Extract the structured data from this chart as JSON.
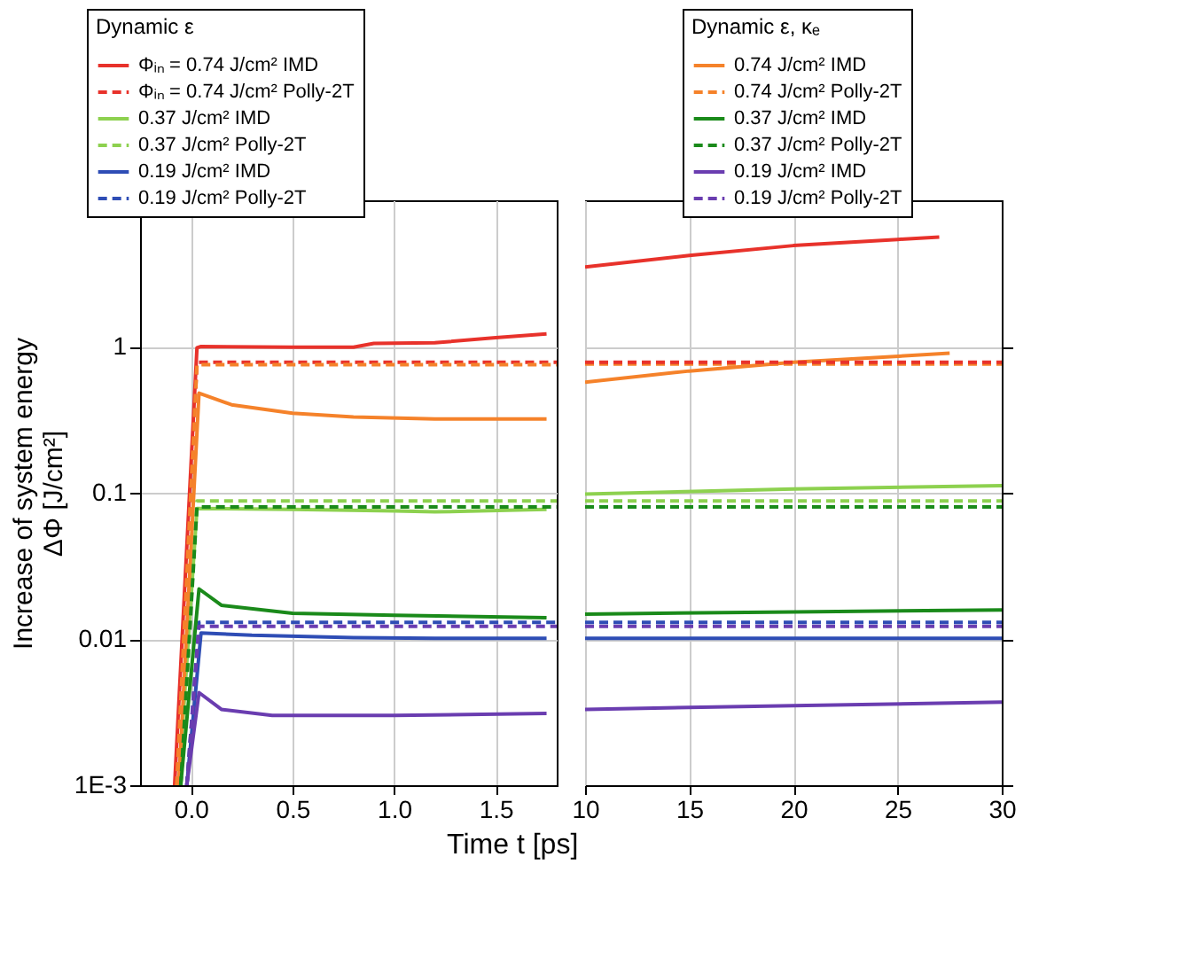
{
  "chart_data": [
    {
      "type": "line",
      "xlabel": "Time t [ps]",
      "ylabel": "Increase of system energy\nΔΦ [J/cm²]",
      "legend_title": "Dynamic ε",
      "legend": "top left",
      "grid": true,
      "log": "y",
      "xlim": [
        -0.25,
        1.8
      ],
      "xticks": [
        {
          "value": 0,
          "label": "0.0"
        },
        0.5,
        {
          "value": 1,
          "label": "1.0"
        },
        1.5
      ],
      "ylim": [
        0.001,
        10
      ],
      "yticks": [
        {
          "value": 0.001,
          "label": "1E-3"
        },
        0.01,
        0.1,
        1
      ],
      "series": [
        {
          "name": "Φᵢₙ = 0.74 J/cm² IMD",
          "color": "#e8322b",
          "line_style": "solid",
          "x": [
            -0.08,
            0.03,
            0.05,
            0.5,
            0.8,
            0.9,
            1.2,
            1.5,
            1.75
          ],
          "values": [
            0.001,
            0.98,
            1.0,
            0.99,
            0.99,
            1.05,
            1.06,
            1.15,
            1.22
          ]
        },
        {
          "name": "Φᵢₙ = 0.74 J/cm² Polly-2T",
          "color": "#e8322b",
          "line_style": "dashed",
          "x": [
            -0.07,
            0.03,
            0.5,
            1.0,
            1.5,
            1.8
          ],
          "values": [
            0.001,
            0.78,
            0.78,
            0.78,
            0.78,
            0.78
          ]
        },
        {
          "name": "0.37 J/cm² IMD",
          "color": "#8dd14f",
          "line_style": "solid",
          "x": [
            -0.06,
            0.03,
            0.5,
            1.0,
            1.2,
            1.75
          ],
          "values": [
            0.001,
            0.078,
            0.077,
            0.075,
            0.074,
            0.077
          ]
        },
        {
          "name": "0.37 J/cm² Polly-2T",
          "color": "#8dd14f",
          "line_style": "dashed",
          "x": [
            -0.05,
            0.03,
            0.5,
            1.0,
            1.5,
            1.8
          ],
          "values": [
            0.001,
            0.088,
            0.088,
            0.088,
            0.088,
            0.088
          ]
        },
        {
          "name": "0.19 J/cm² IMD",
          "color": "#2e4db5",
          "line_style": "solid",
          "x": [
            -0.02,
            0.05,
            0.3,
            0.8,
            1.2,
            1.75
          ],
          "values": [
            0.001,
            0.011,
            0.0106,
            0.0102,
            0.0101,
            0.0101
          ]
        },
        {
          "name": "0.19 J/cm² Polly-2T",
          "color": "#2e4db5",
          "line_style": "dashed",
          "x": [
            -0.02,
            0.04,
            0.5,
            1.0,
            1.5,
            1.8
          ],
          "values": [
            0.001,
            0.013,
            0.013,
            0.013,
            0.013,
            0.013
          ]
        },
        {
          "color": "#f5822a",
          "line_style": "solid",
          "x": [
            -0.06,
            0.04,
            0.2,
            0.5,
            0.8,
            1.2,
            1.75
          ],
          "values": [
            0.001,
            0.48,
            0.4,
            0.35,
            0.33,
            0.32,
            0.32
          ]
        },
        {
          "color": "#f5822a",
          "line_style": "dashed",
          "x": [
            -0.07,
            0.03,
            0.5,
            1.0,
            1.5,
            1.8
          ],
          "values": [
            0.001,
            0.75,
            0.75,
            0.75,
            0.75,
            0.75
          ]
        },
        {
          "color": "#1a8a1a",
          "line_style": "solid",
          "x": [
            -0.05,
            0.04,
            0.15,
            0.5,
            1.0,
            1.75
          ],
          "values": [
            0.001,
            0.022,
            0.017,
            0.015,
            0.0145,
            0.014
          ]
        },
        {
          "color": "#1a8a1a",
          "line_style": "dashed",
          "x": [
            -0.05,
            0.03,
            0.5,
            1.0,
            1.5,
            1.8
          ],
          "values": [
            0.001,
            0.08,
            0.08,
            0.08,
            0.08,
            0.08
          ]
        },
        {
          "color": "#6a3db0",
          "line_style": "solid",
          "x": [
            -0.02,
            0.04,
            0.15,
            0.4,
            1.0,
            1.75
          ],
          "values": [
            0.001,
            0.0043,
            0.0033,
            0.003,
            0.003,
            0.0031
          ]
        },
        {
          "color": "#6a3db0",
          "line_style": "dashed",
          "x": [
            -0.02,
            0.04,
            0.5,
            1.0,
            1.5,
            1.8
          ],
          "values": [
            0.001,
            0.0122,
            0.0122,
            0.0122,
            0.0122,
            0.0122
          ]
        }
      ]
    },
    {
      "type": "line",
      "legend_title": "Dynamic ε, κₑ",
      "legend": "top right",
      "grid": true,
      "log": "y",
      "tick_labels": "x",
      "xlim": [
        10,
        30
      ],
      "xticks": [
        10,
        15,
        20,
        25,
        30
      ],
      "ylim": [
        0.001,
        10
      ],
      "yticks": [
        0.001,
        0.01,
        0.1,
        1
      ],
      "series": [
        {
          "name": "0.74 J/cm² IMD",
          "color": "#f5822a",
          "line_style": "solid",
          "x": [
            10,
            15,
            20,
            27.5
          ],
          "values": [
            0.57,
            0.68,
            0.78,
            0.9
          ]
        },
        {
          "name": "0.74 J/cm² Polly-2T",
          "color": "#f5822a",
          "line_style": "dashed",
          "x": [
            10,
            20,
            30
          ],
          "values": [
            0.76,
            0.76,
            0.76
          ]
        },
        {
          "name": "0.37 J/cm² IMD",
          "color": "#1a8a1a",
          "line_style": "solid",
          "x": [
            10,
            20,
            30
          ],
          "values": [
            0.0148,
            0.0153,
            0.0158
          ]
        },
        {
          "name": "0.37 J/cm² Polly-2T",
          "color": "#1a8a1a",
          "line_style": "dashed",
          "x": [
            10,
            20,
            30
          ],
          "values": [
            0.08,
            0.08,
            0.08
          ]
        },
        {
          "name": "0.19 J/cm² IMD",
          "color": "#6a3db0",
          "line_style": "solid",
          "x": [
            10,
            20,
            30
          ],
          "values": [
            0.0033,
            0.0035,
            0.0037
          ]
        },
        {
          "name": "0.19 J/cm² Polly-2T",
          "color": "#6a3db0",
          "line_style": "dashed",
          "x": [
            10,
            20,
            30
          ],
          "values": [
            0.0122,
            0.0122,
            0.0122
          ]
        },
        {
          "color": "#e8322b",
          "line_style": "solid",
          "x": [
            10,
            15,
            20,
            25,
            27
          ],
          "values": [
            3.5,
            4.2,
            4.9,
            5.4,
            5.6
          ]
        },
        {
          "color": "#e8322b",
          "line_style": "dashed",
          "x": [
            10,
            20,
            30
          ],
          "values": [
            0.78,
            0.78,
            0.78
          ]
        },
        {
          "color": "#8dd14f",
          "line_style": "solid",
          "x": [
            10,
            20,
            30
          ],
          "values": [
            0.098,
            0.106,
            0.112
          ]
        },
        {
          "color": "#8dd14f",
          "line_style": "dashed",
          "x": [
            10,
            20,
            30
          ],
          "values": [
            0.088,
            0.088,
            0.088
          ]
        },
        {
          "color": "#2e4db5",
          "line_style": "solid",
          "x": [
            10,
            20,
            30
          ],
          "values": [
            0.0101,
            0.0101,
            0.0101
          ]
        },
        {
          "color": "#2e4db5",
          "line_style": "dashed",
          "x": [
            10,
            20,
            30
          ],
          "values": [
            0.013,
            0.013,
            0.013
          ]
        }
      ]
    }
  ]
}
